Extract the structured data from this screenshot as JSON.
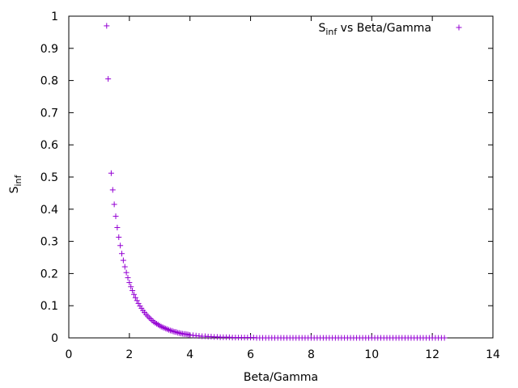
{
  "chart_data": {
    "type": "scatter",
    "xlabel": "Beta/Gamma",
    "ylabel": {
      "main": "S",
      "sub": "inf"
    },
    "xlim": [
      0,
      14
    ],
    "ylim": [
      0,
      1
    ],
    "xticks": [
      "0",
      "2",
      "4",
      "6",
      "8",
      "10",
      "12",
      "14"
    ],
    "yticks": [
      "0",
      "0.1",
      "0.2",
      "0.3",
      "0.4",
      "0.5",
      "0.6",
      "0.7",
      "0.8",
      "0.9",
      "1"
    ],
    "legend_position": "top-right",
    "series": [
      {
        "legend_main": "S",
        "legend_sub": "inf",
        "legend_rest": " vs Beta/Gamma",
        "color": "#9400d3",
        "marker": "plus",
        "x": [
          1.25,
          1.3,
          1.4,
          1.45,
          1.5,
          1.55,
          1.6,
          1.65,
          1.7,
          1.75,
          1.8,
          1.85,
          1.9,
          1.95,
          2.0,
          2.05,
          2.1,
          2.15,
          2.2,
          2.25,
          2.3,
          2.35,
          2.4,
          2.45,
          2.5,
          2.55,
          2.6,
          2.65,
          2.7,
          2.75,
          2.8,
          2.85,
          2.9,
          2.95,
          3.0,
          3.05,
          3.1,
          3.15,
          3.2,
          3.25,
          3.3,
          3.35,
          3.4,
          3.45,
          3.5,
          3.55,
          3.6,
          3.65,
          3.7,
          3.75,
          3.8,
          3.85,
          3.9,
          3.95,
          4.0,
          4.1,
          4.2,
          4.3,
          4.4,
          4.5,
          4.6,
          4.7,
          4.8,
          4.9,
          5.0,
          5.1,
          5.2,
          5.3,
          5.4,
          5.5,
          5.6,
          5.7,
          5.8,
          5.9,
          6.0,
          6.1,
          6.2,
          6.3,
          6.4,
          6.5,
          6.6,
          6.7,
          6.8,
          6.9,
          7.0,
          7.1,
          7.2,
          7.3,
          7.4,
          7.5,
          7.6,
          7.7,
          7.8,
          7.9,
          8.0,
          8.1,
          8.2,
          8.3,
          8.4,
          8.5,
          8.6,
          8.7,
          8.8,
          8.9,
          9.0,
          9.1,
          9.2,
          9.3,
          9.4,
          9.5,
          9.6,
          9.7,
          9.8,
          9.9,
          10.0,
          10.1,
          10.2,
          10.3,
          10.4,
          10.5,
          10.6,
          10.7,
          10.8,
          10.9,
          11.0,
          11.1,
          11.2,
          11.3,
          11.4,
          11.5,
          11.6,
          11.7,
          11.8,
          11.9,
          12.0,
          12.1,
          12.2,
          12.3,
          12.4
        ],
        "y": [
          0.97,
          0.805,
          0.512,
          0.46,
          0.415,
          0.378,
          0.343,
          0.313,
          0.287,
          0.262,
          0.241,
          0.221,
          0.203,
          0.187,
          0.172,
          0.159,
          0.147,
          0.135,
          0.125,
          0.116,
          0.107,
          0.099,
          0.092,
          0.085,
          0.079,
          0.073,
          0.068,
          0.063,
          0.059,
          0.054,
          0.05,
          0.047,
          0.044,
          0.041,
          0.038,
          0.035,
          0.033,
          0.031,
          0.029,
          0.027,
          0.025,
          0.023,
          0.022,
          0.02,
          0.019,
          0.018,
          0.016,
          0.015,
          0.014,
          0.013,
          0.012,
          0.012,
          0.011,
          0.01,
          0.009,
          0.008,
          0.007,
          0.006,
          0.005,
          0.005,
          0.004,
          0.004,
          0.003,
          0.003,
          0.002,
          0.002,
          0.002,
          0.002,
          0.001,
          0.001,
          0.001,
          0.001,
          0.001,
          0.001,
          0.001,
          0.001,
          0.0,
          0.0,
          0.0,
          0.0,
          0.0,
          0.0,
          0.0,
          0.0,
          0.0,
          0.0,
          0.0,
          0.0,
          0.0,
          0.0,
          0.0,
          0.0,
          0.0,
          0.0,
          0.0,
          0.0,
          0.0,
          0.0,
          0.0,
          0.0,
          0.0,
          0.0,
          0.0,
          0.0,
          0.0,
          0.0,
          0.0,
          0.0,
          0.0,
          0.0,
          0.0,
          0.0,
          0.0,
          0.0,
          0.0,
          0.0,
          0.0,
          0.0,
          0.0,
          0.0,
          0.0,
          0.0,
          0.0,
          0.0,
          0.0,
          0.0,
          0.0,
          0.0,
          0.0,
          0.0,
          0.0,
          0.0,
          0.0,
          0.0,
          0.0,
          0.0,
          0.0,
          0.0,
          0.0
        ]
      }
    ]
  }
}
